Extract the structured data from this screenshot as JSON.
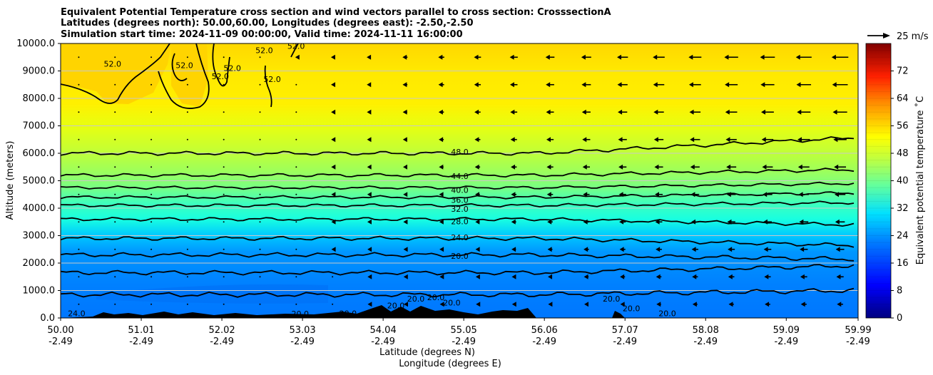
{
  "chart_data": {
    "type": "heatmap",
    "title_lines": [
      "Equivalent Potential Temperature cross section and wind vectors parallel to cross section: CrosssectionA",
      "Latitudes (degrees north): 50.00,60.00, Longitudes (degrees east): -2.50,-2.50",
      "Simulation start time: 2024-11-09 00:00:00, Valid time: 2024-11-11 16:00:00"
    ],
    "ylabel": "Altitude (meters)",
    "xlabel": "Latitude (degrees N)",
    "xlabel2": "Longitude (degrees E)",
    "ylim": [
      0,
      10000
    ],
    "yticks": [
      "0.0",
      "1000.0",
      "2000.0",
      "3000.0",
      "4000.0",
      "5000.0",
      "6000.0",
      "7000.0",
      "8000.0",
      "9000.0",
      "10000.0"
    ],
    "xlim": [
      50.0,
      59.99
    ],
    "xtick_values": [
      50.0,
      51.01,
      52.02,
      53.03,
      54.04,
      55.05,
      56.06,
      57.07,
      58.08,
      59.09,
      59.99
    ],
    "xticks_lat": [
      "50.00",
      "51.01",
      "52.02",
      "53.03",
      "54.04",
      "55.05",
      "56.06",
      "57.07",
      "58.08",
      "59.09",
      "59.99"
    ],
    "xticks_lon": [
      "-2.49",
      "-2.49",
      "-2.49",
      "-2.49",
      "-2.49",
      "-2.49",
      "-2.49",
      "-2.49",
      "-2.49",
      "-2.49",
      "-2.49"
    ],
    "colorbar": {
      "label": "Equivalent potential temperature ˚C",
      "range": [
        0,
        80
      ],
      "ticks": [
        "0",
        "8",
        "16",
        "24",
        "32",
        "40",
        "48",
        "56",
        "64",
        "72"
      ]
    },
    "quiver_key": "25 m/s",
    "contour_labels": [
      {
        "text": "52.0",
        "lat": 50.65,
        "alt": 9150
      },
      {
        "text": "52.0",
        "lat": 51.55,
        "alt": 9100
      },
      {
        "text": "52.0",
        "lat": 52.0,
        "alt": 8700
      },
      {
        "text": "52.0",
        "lat": 52.15,
        "alt": 9000
      },
      {
        "text": "52.0",
        "lat": 52.55,
        "alt": 9650
      },
      {
        "text": "52.0",
        "lat": 52.65,
        "alt": 8600
      },
      {
        "text": "52.0",
        "lat": 52.95,
        "alt": 9800
      },
      {
        "text": "48.0",
        "lat": 55.0,
        "alt": 5950
      },
      {
        "text": "44.0",
        "lat": 55.0,
        "alt": 5070
      },
      {
        "text": "40.0",
        "lat": 55.0,
        "alt": 4560
      },
      {
        "text": "36.0",
        "lat": 55.0,
        "alt": 4200
      },
      {
        "text": "32.0",
        "lat": 55.0,
        "alt": 3870
      },
      {
        "text": "28.0",
        "lat": 55.0,
        "alt": 3420
      },
      {
        "text": "24.0",
        "lat": 55.0,
        "alt": 2830
      },
      {
        "text": "20.0",
        "lat": 55.0,
        "alt": 2160
      },
      {
        "text": "24.0",
        "lat": 50.2,
        "alt": 70
      },
      {
        "text": "20.0",
        "lat": 53.0,
        "alt": 50
      },
      {
        "text": "20.0",
        "lat": 53.6,
        "alt": 60
      },
      {
        "text": "20.0",
        "lat": 54.2,
        "alt": 350
      },
      {
        "text": "20.0",
        "lat": 54.45,
        "alt": 600
      },
      {
        "text": "20.0",
        "lat": 54.7,
        "alt": 650
      },
      {
        "text": "20.0",
        "lat": 54.9,
        "alt": 450
      },
      {
        "text": "20.0",
        "lat": 56.9,
        "alt": 600
      },
      {
        "text": "20.0",
        "lat": 57.15,
        "alt": 250
      },
      {
        "text": "20.0",
        "lat": 57.6,
        "alt": 60
      }
    ]
  }
}
